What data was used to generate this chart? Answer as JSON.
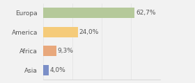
{
  "categories": [
    "Europa",
    "America",
    "Africa",
    "Asia"
  ],
  "values": [
    62.7,
    24.0,
    9.3,
    4.0
  ],
  "labels": [
    "62,7%",
    "24,0%",
    "9,3%",
    "4,0%"
  ],
  "bar_colors": [
    "#b5c99a",
    "#f5cb7a",
    "#e8a87c",
    "#7b8fc7"
  ],
  "background_color": "#f2f2f2",
  "xlim": [
    0,
    80
  ],
  "bar_height": 0.55,
  "label_fontsize": 6.5,
  "ytick_fontsize": 6.5
}
